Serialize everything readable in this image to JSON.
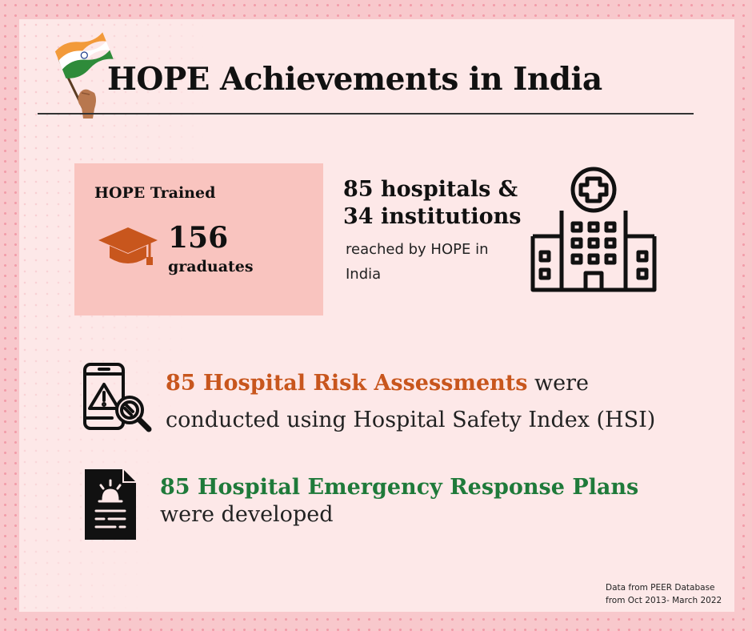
{
  "title": "HOPE Achievements in India",
  "trained": {
    "label": "HOPE Trained",
    "count": "156",
    "unit": "graduates"
  },
  "hospitals": {
    "line1": "85 hospitals &",
    "line2": "34 institutions",
    "description": "reached by HOPE in India"
  },
  "risk": {
    "highlight": "85 Hospital Risk Assessments",
    "text_after": " were conducted using Hospital Safety Index (HSI)"
  },
  "plans": {
    "highlight": "85 Hospital Emergency Response Plans",
    "text_after": " were developed"
  },
  "source": {
    "line1": "Data from PEER Database",
    "line2": "from Oct 2013- March 2022"
  },
  "colors": {
    "outer_background": "#f8c8cc",
    "card_background": "#fde8e8",
    "trained_box": "#f9c4bf",
    "orange_accent": "#c8561d",
    "green_accent": "#1f7a3a",
    "cap_icon": "#c8561d"
  },
  "icons": {
    "flag": "india-flag-icon",
    "cap": "graduation-cap-icon",
    "hospital": "hospital-building-icon",
    "risk": "phone-warning-search-icon",
    "plan": "document-alarm-icon"
  }
}
